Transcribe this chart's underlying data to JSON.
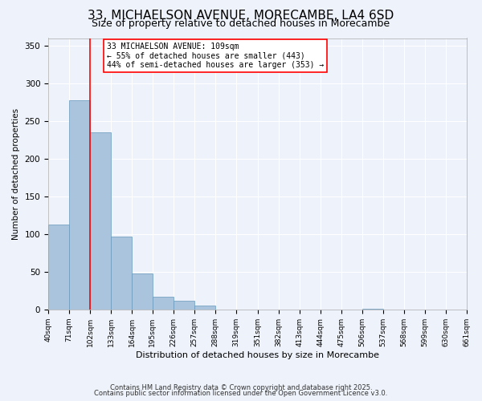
{
  "title": "33, MICHAELSON AVENUE, MORECAMBE, LA4 6SD",
  "subtitle": "Size of property relative to detached houses in Morecambe",
  "xlabel": "Distribution of detached houses by size in Morecambe",
  "ylabel": "Number of detached properties",
  "bar_values": [
    113,
    278,
    235,
    97,
    48,
    17,
    12,
    5,
    0,
    0,
    0,
    0,
    0,
    0,
    0,
    1,
    0,
    0,
    0,
    0
  ],
  "bin_labels": [
    "40sqm",
    "71sqm",
    "102sqm",
    "133sqm",
    "164sqm",
    "195sqm",
    "226sqm",
    "257sqm",
    "288sqm",
    "319sqm",
    "351sqm",
    "382sqm",
    "413sqm",
    "444sqm",
    "475sqm",
    "506sqm",
    "537sqm",
    "568sqm",
    "599sqm",
    "630sqm",
    "661sqm"
  ],
  "bin_edges": [
    40,
    71,
    102,
    133,
    164,
    195,
    226,
    257,
    288,
    319,
    351,
    382,
    413,
    444,
    475,
    506,
    537,
    568,
    599,
    630,
    661
  ],
  "bar_color": "#aac4de",
  "bar_edge_color": "#6699bb",
  "vline_x": 102,
  "vline_color": "red",
  "ylim": [
    0,
    360
  ],
  "yticks": [
    0,
    50,
    100,
    150,
    200,
    250,
    300,
    350
  ],
  "annotation_line1": "33 MICHAELSON AVENUE: 109sqm",
  "annotation_line2": "← 55% of detached houses are smaller (443)",
  "annotation_line3": "44% of semi-detached houses are larger (353) →",
  "footnote1": "Contains HM Land Registry data © Crown copyright and database right 2025.",
  "footnote2": "Contains public sector information licensed under the Open Government Licence v3.0.",
  "background_color": "#eef2fa",
  "title_fontsize": 11,
  "subtitle_fontsize": 9
}
